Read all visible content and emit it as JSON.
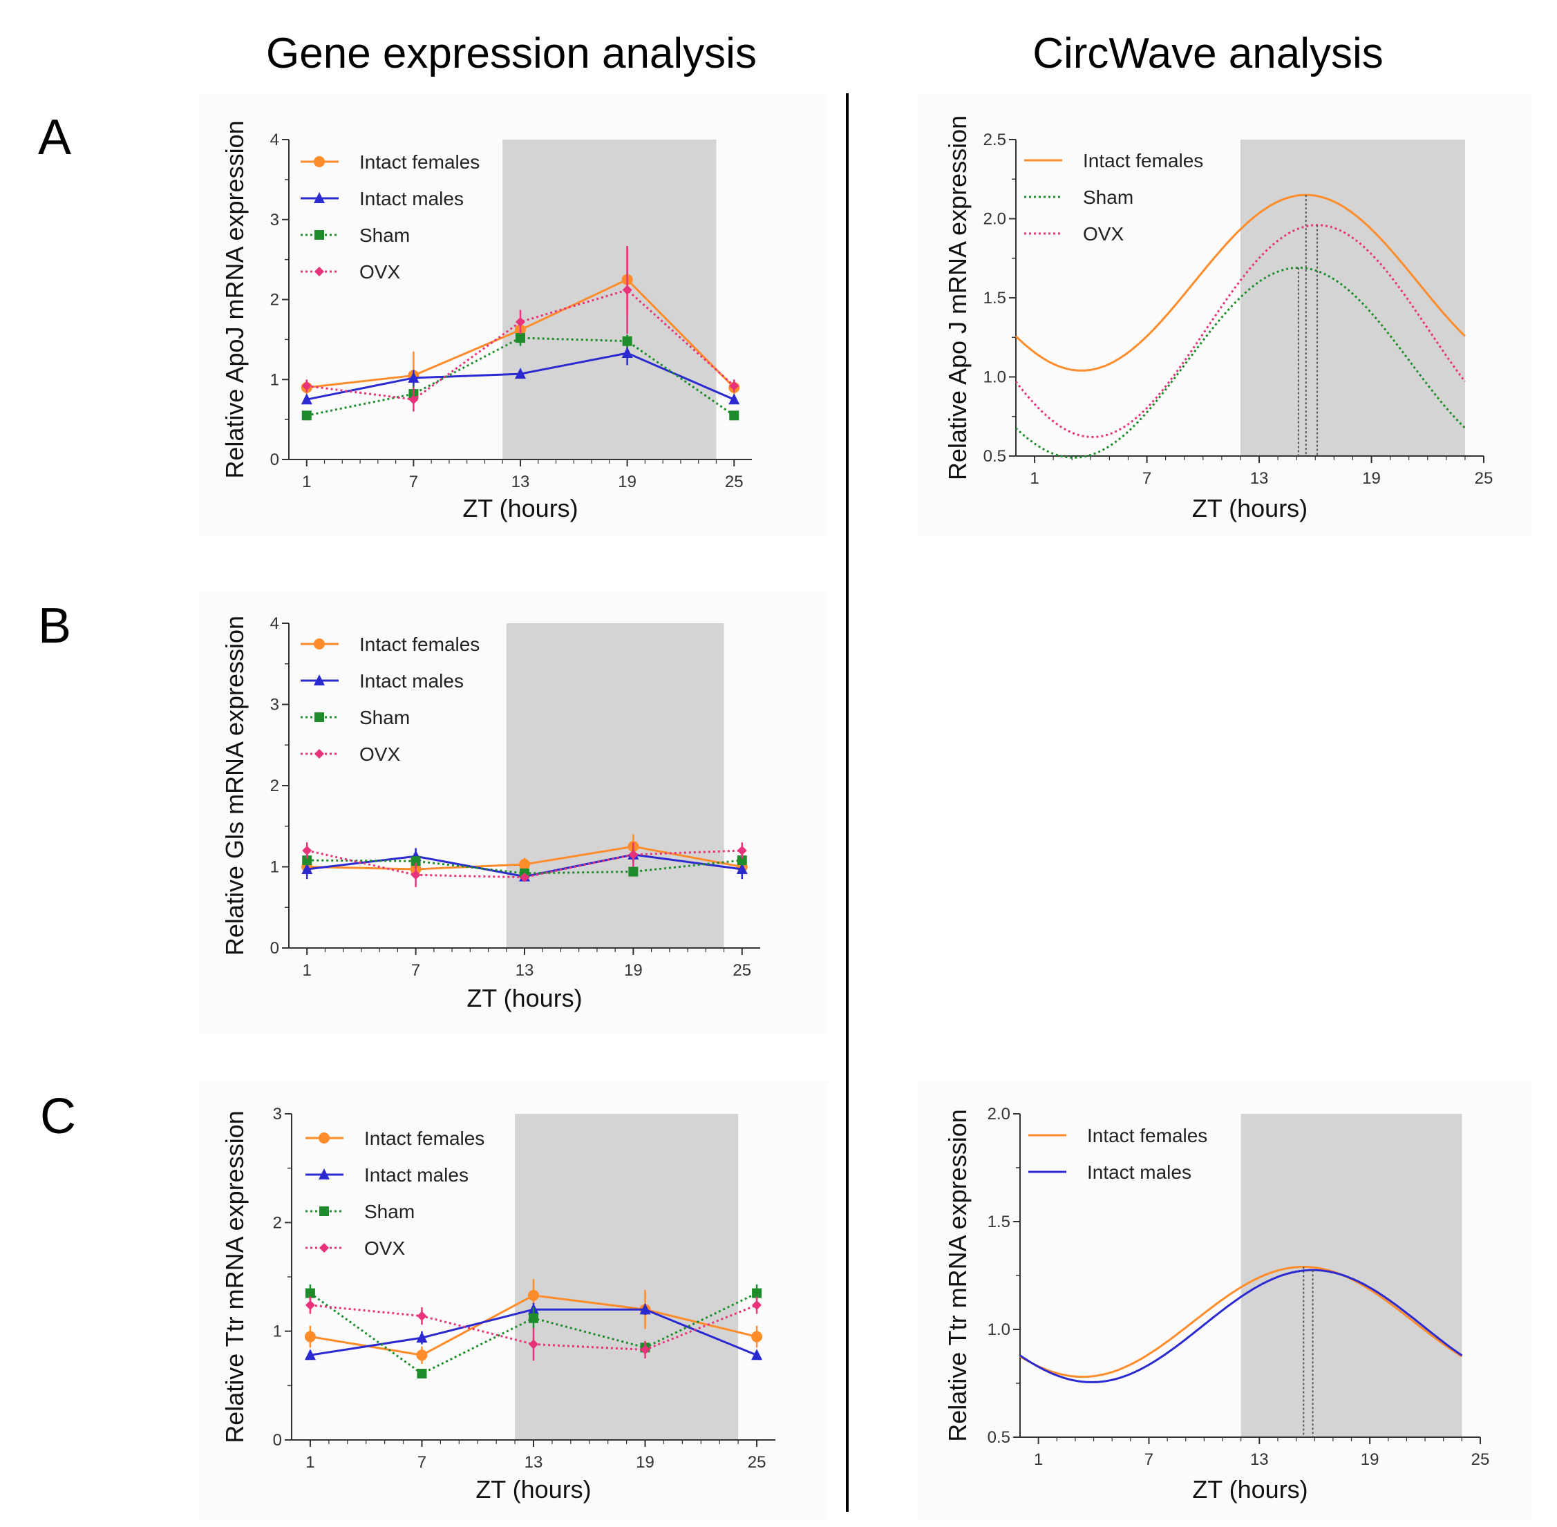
{
  "headings": {
    "left": "Gene expression analysis",
    "right": "CircWave analysis"
  },
  "panels": {
    "A": "A",
    "B": "B",
    "C": "C"
  },
  "colors": {
    "intact_females": "#ff8c2a",
    "intact_males": "#2a2ad0",
    "sham": "#1e8c2a",
    "ovx": "#e8337a",
    "night_shade": "#d4d4d4",
    "panel_bg": "#fbfbfb"
  },
  "chart_data": [
    {
      "id": "A-left",
      "type": "line",
      "title": "",
      "xlabel": "ZT (hours)",
      "ylabel": "Relative ApoJ mRNA expression",
      "x": [
        1,
        7,
        13,
        19,
        25
      ],
      "xticks": [
        "1",
        "7",
        "13",
        "19",
        "25"
      ],
      "xlim": [
        0,
        26
      ],
      "ylim": [
        0,
        4
      ],
      "yticks": [
        "0",
        "1",
        "2",
        "3",
        "4"
      ],
      "dark_phase": [
        12,
        24
      ],
      "series": [
        {
          "name": "Intact females",
          "key": "intact_females",
          "marker": "circle",
          "dashed": false,
          "values": [
            0.9,
            1.05,
            1.62,
            2.25,
            0.9
          ],
          "err": [
            0.08,
            0.3,
            0.08,
            0.42,
            0.08
          ]
        },
        {
          "name": "Intact males",
          "key": "intact_males",
          "marker": "triangle",
          "dashed": false,
          "values": [
            0.75,
            1.02,
            1.07,
            1.33,
            0.75
          ],
          "err": [
            0.06,
            0.1,
            0.05,
            0.15,
            0.06
          ]
        },
        {
          "name": "Sham",
          "key": "sham",
          "marker": "square",
          "dashed": true,
          "values": [
            0.55,
            0.82,
            1.52,
            1.48,
            0.55
          ],
          "err": [
            0.04,
            0.1,
            0.1,
            0.08,
            0.04
          ]
        },
        {
          "name": "OVX",
          "key": "ovx",
          "marker": "diamond",
          "dashed": true,
          "values": [
            0.92,
            0.75,
            1.72,
            2.12,
            0.92
          ],
          "err": [
            0.08,
            0.15,
            0.15,
            0.55,
            0.08
          ]
        }
      ]
    },
    {
      "id": "A-right",
      "type": "line",
      "title": "",
      "xlabel": "ZT (hours)",
      "ylabel": "Relative Apo J mRNA expression",
      "xticks": [
        "1",
        "7",
        "13",
        "19",
        "25"
      ],
      "xlim": [
        0,
        25
      ],
      "ylim": [
        0.5,
        2.5
      ],
      "yticks": [
        "0.5",
        "1.0",
        "1.5",
        "2.0",
        "2.5"
      ],
      "dark_phase": [
        12,
        24
      ],
      "series": [
        {
          "name": "Intact females",
          "key": "intact_females",
          "dashed": false,
          "mean": 1.595,
          "amplitude": 0.555,
          "peak": 15.5
        },
        {
          "name": "Sham",
          "key": "sham",
          "dashed": true,
          "mean": 1.09,
          "amplitude": 0.6,
          "peak": 15.1
        },
        {
          "name": "OVX",
          "key": "ovx",
          "dashed": true,
          "mean": 1.29,
          "amplitude": 0.67,
          "peak": 16.1
        }
      ]
    },
    {
      "id": "B-left",
      "type": "line",
      "title": "",
      "xlabel": "ZT (hours)",
      "ylabel": "Relative Gls mRNA expression",
      "x": [
        1,
        7,
        13,
        19,
        25
      ],
      "xticks": [
        "1",
        "7",
        "13",
        "19",
        "25"
      ],
      "xlim": [
        0,
        26
      ],
      "ylim": [
        0,
        4
      ],
      "yticks": [
        "0",
        "1",
        "2",
        "3",
        "4"
      ],
      "dark_phase": [
        12,
        24
      ],
      "series": [
        {
          "name": "Intact females",
          "key": "intact_females",
          "marker": "circle",
          "dashed": false,
          "values": [
            1.0,
            0.97,
            1.03,
            1.25,
            1.0
          ],
          "err": [
            0.05,
            0.08,
            0.08,
            0.15,
            0.05
          ]
        },
        {
          "name": "Intact males",
          "key": "intact_males",
          "marker": "triangle",
          "dashed": false,
          "values": [
            0.97,
            1.13,
            0.88,
            1.15,
            0.97
          ],
          "err": [
            0.12,
            0.1,
            0.06,
            0.1,
            0.12
          ]
        },
        {
          "name": "Sham",
          "key": "sham",
          "marker": "square",
          "dashed": true,
          "values": [
            1.08,
            1.07,
            0.92,
            0.94,
            1.08
          ],
          "err": [
            0.06,
            0.06,
            0.05,
            0.05,
            0.06
          ]
        },
        {
          "name": "OVX",
          "key": "ovx",
          "marker": "diamond",
          "dashed": true,
          "values": [
            1.2,
            0.9,
            0.87,
            1.15,
            1.2
          ],
          "err": [
            0.1,
            0.15,
            0.05,
            0.15,
            0.1
          ]
        }
      ]
    },
    {
      "id": "C-left",
      "type": "line",
      "title": "",
      "xlabel": "ZT (hours)",
      "ylabel": "Relative Ttr mRNA expression",
      "x": [
        1,
        7,
        13,
        19,
        25
      ],
      "xticks": [
        "1",
        "7",
        "13",
        "19",
        "25"
      ],
      "xlim": [
        0,
        26
      ],
      "ylim": [
        0,
        3
      ],
      "yticks": [
        "0",
        "1",
        "2",
        "3"
      ],
      "dark_phase": [
        12,
        24
      ],
      "series": [
        {
          "name": "Intact females",
          "key": "intact_females",
          "marker": "circle",
          "dashed": false,
          "values": [
            0.95,
            0.78,
            1.33,
            1.2,
            0.95
          ],
          "err": [
            0.1,
            0.08,
            0.15,
            0.18,
            0.1
          ]
        },
        {
          "name": "Intact males",
          "key": "intact_males",
          "marker": "triangle",
          "dashed": false,
          "values": [
            0.78,
            0.94,
            1.2,
            1.2,
            0.78
          ],
          "err": [
            0.04,
            0.06,
            0.06,
            0.05,
            0.04
          ]
        },
        {
          "name": "Sham",
          "key": "sham",
          "marker": "square",
          "dashed": true,
          "values": [
            1.35,
            0.61,
            1.12,
            0.85,
            1.35
          ],
          "err": [
            0.08,
            0.04,
            0.1,
            0.05,
            0.08
          ]
        },
        {
          "name": "OVX",
          "key": "ovx",
          "marker": "diamond",
          "dashed": true,
          "values": [
            1.24,
            1.14,
            0.88,
            0.83,
            1.24
          ],
          "err": [
            0.08,
            0.08,
            0.15,
            0.08,
            0.08
          ]
        }
      ]
    },
    {
      "id": "C-right",
      "type": "line",
      "title": "",
      "xlabel": "ZT (hours)",
      "ylabel": "Relative Ttr mRNA expression",
      "xticks": [
        "1",
        "7",
        "13",
        "19",
        "25"
      ],
      "xlim": [
        0,
        25
      ],
      "ylim": [
        0.5,
        2.0
      ],
      "yticks": [
        "0.5",
        "1.0",
        "1.5",
        "2.0"
      ],
      "dark_phase": [
        12,
        24
      ],
      "series": [
        {
          "name": "Intact females",
          "key": "intact_females",
          "dashed": false,
          "mean": 1.035,
          "amplitude": 0.255,
          "peak": 15.4
        },
        {
          "name": "Intact males",
          "key": "intact_males",
          "dashed": false,
          "mean": 1.015,
          "amplitude": 0.26,
          "peak": 15.9
        }
      ]
    }
  ]
}
